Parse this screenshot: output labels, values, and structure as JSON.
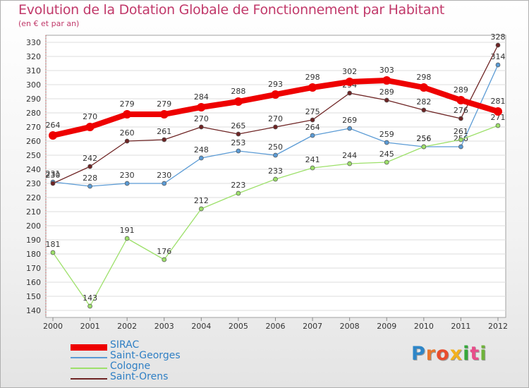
{
  "header": {
    "title": "Evolution de la Dotation Globale de Fonctionnement par Habitant",
    "subtitle": "(en € et par an)"
  },
  "logo": {
    "text": "Proxiti",
    "letters": [
      "P",
      "r",
      "o",
      "x",
      "i",
      "t",
      "i"
    ],
    "colors": [
      "#2e86c8",
      "#e8772e",
      "#e84d2e",
      "#f2b01e",
      "#35a83a",
      "#e84d8a",
      "#6fb33a"
    ]
  },
  "chart_data": {
    "type": "line",
    "title": "Evolution de la Dotation Globale de Fonctionnement par Habitant",
    "subtitle": "(en € et par an)",
    "xlabel": "",
    "ylabel": "",
    "x": [
      "2000",
      "2001",
      "2002",
      "2003",
      "2004",
      "2005",
      "2006",
      "2007",
      "2008",
      "2009",
      "2010",
      "2011",
      "2012"
    ],
    "ylim": [
      140,
      330
    ],
    "yticks": [
      140,
      150,
      160,
      170,
      180,
      190,
      200,
      210,
      220,
      230,
      240,
      250,
      260,
      270,
      280,
      290,
      300,
      310,
      320,
      330
    ],
    "grid": true,
    "legend_position": "bottom-left",
    "series": [
      {
        "name": "Saint-Georges",
        "color": "#5b9bd5",
        "values": [
          231,
          228,
          230,
          230,
          248,
          253,
          250,
          264,
          269,
          259,
          256,
          256,
          314
        ]
      },
      {
        "name": "Cologne",
        "color": "#9de06a",
        "values": [
          181,
          143,
          191,
          176,
          212,
          223,
          233,
          241,
          244,
          245,
          256,
          261,
          271
        ]
      },
      {
        "name": "Saint-Orens",
        "color": "#6e2424",
        "values": [
          230,
          242,
          260,
          261,
          270,
          265,
          270,
          275,
          294,
          289,
          282,
          276,
          328
        ]
      },
      {
        "name": "SIRAC",
        "color": "#ee0000",
        "values": [
          264,
          270,
          279,
          279,
          284,
          288,
          293,
          298,
          302,
          303,
          298,
          289,
          281
        ]
      }
    ],
    "legend": [
      "SIRAC",
      "Saint-Georges",
      "Cologne",
      "Saint-Orens"
    ]
  }
}
